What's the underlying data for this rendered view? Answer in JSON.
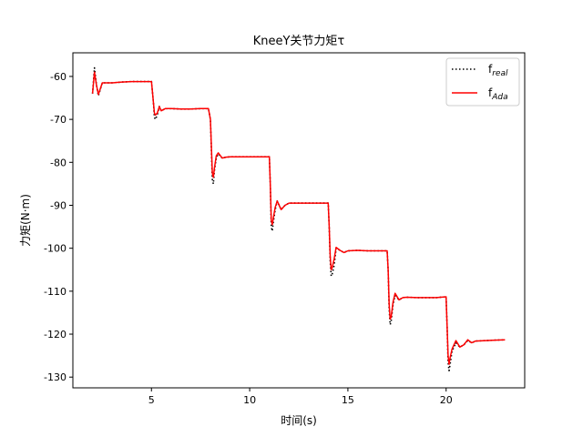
{
  "chart_data": {
    "type": "line",
    "title": "KneeY关节力矩τ",
    "xlabel": "时间(s)",
    "ylabel": "力矩(N·m)",
    "xlim": [
      1.0,
      24.0
    ],
    "ylim": [
      -132.5,
      -54.5
    ],
    "xticks": [
      5,
      10,
      15,
      20
    ],
    "yticks": [
      -60,
      -70,
      -80,
      -90,
      -100,
      -110,
      -120,
      -130
    ],
    "grid": false,
    "legend_position": "top-right",
    "series": [
      {
        "name": "f",
        "name_sub": "real",
        "color": "#000000",
        "style": "dotted",
        "x": [
          2.0,
          2.1,
          2.2,
          2.3,
          2.5,
          3.0,
          3.5,
          4.0,
          4.5,
          5.0,
          5.1,
          5.15,
          5.2,
          5.3,
          5.4,
          5.5,
          5.7,
          6.0,
          6.5,
          7.0,
          7.5,
          7.9,
          8.0,
          8.1,
          8.15,
          8.2,
          8.3,
          8.4,
          8.6,
          8.8,
          9.0,
          9.5,
          10.0,
          10.5,
          11.0,
          11.05,
          11.1,
          11.15,
          11.2,
          11.3,
          11.4,
          11.6,
          11.8,
          12.0,
          12.5,
          13.0,
          13.5,
          14.0,
          14.05,
          14.1,
          14.15,
          14.2,
          14.3,
          14.4,
          14.6,
          14.8,
          15.0,
          15.5,
          16.0,
          16.5,
          17.0,
          17.05,
          17.1,
          17.15,
          17.2,
          17.3,
          17.4,
          17.6,
          17.8,
          18.0,
          18.5,
          19.0,
          19.5,
          20.0,
          20.05,
          20.1,
          20.15,
          20.2,
          20.3,
          20.5,
          20.7,
          20.9,
          21.1,
          21.3,
          21.5,
          22.0,
          22.5,
          23.0
        ],
        "y": [
          -64,
          -58,
          -62,
          -64.5,
          -61.5,
          -61.5,
          -61.3,
          -61.2,
          -61.2,
          -61.2,
          -66,
          -69.5,
          -70,
          -69,
          -67,
          -68,
          -67.5,
          -67.5,
          -67.6,
          -67.6,
          -67.5,
          -67.5,
          -70,
          -84,
          -85,
          -82,
          -79,
          -78,
          -79,
          -78.8,
          -78.7,
          -78.7,
          -78.7,
          -78.7,
          -78.7,
          -85,
          -95,
          -96,
          -94,
          -91,
          -89,
          -91,
          -90,
          -89.5,
          -89.5,
          -89.5,
          -89.5,
          -89.5,
          -95,
          -103,
          -106.5,
          -106,
          -104,
          -100,
          -100.5,
          -101,
          -100.6,
          -100.5,
          -100.6,
          -100.6,
          -100.6,
          -105,
          -114,
          -117.8,
          -117,
          -113,
          -111,
          -112,
          -111.5,
          -111.4,
          -111.5,
          -111.5,
          -111.5,
          -111.3,
          -118,
          -126.5,
          -128.5,
          -127,
          -124,
          -122,
          -123,
          -122.5,
          -121.5,
          -122,
          -121.6,
          -121.5,
          -121.4,
          -121.3
        ]
      },
      {
        "name": "f",
        "name_sub": "Ada",
        "color": "#ff0000",
        "style": "solid",
        "x": [
          2.0,
          2.1,
          2.2,
          2.3,
          2.5,
          3.0,
          3.5,
          4.0,
          4.5,
          5.0,
          5.1,
          5.15,
          5.2,
          5.3,
          5.4,
          5.5,
          5.7,
          6.0,
          6.5,
          7.0,
          7.5,
          7.9,
          8.0,
          8.1,
          8.15,
          8.2,
          8.3,
          8.4,
          8.6,
          8.8,
          9.0,
          9.5,
          10.0,
          10.5,
          11.0,
          11.05,
          11.1,
          11.15,
          11.2,
          11.3,
          11.4,
          11.6,
          11.8,
          12.0,
          12.5,
          13.0,
          13.5,
          14.0,
          14.05,
          14.1,
          14.15,
          14.2,
          14.3,
          14.4,
          14.6,
          14.8,
          15.0,
          15.5,
          16.0,
          16.5,
          17.0,
          17.05,
          17.1,
          17.15,
          17.2,
          17.3,
          17.4,
          17.6,
          17.8,
          18.0,
          18.5,
          19.0,
          19.5,
          20.0,
          20.05,
          20.1,
          20.15,
          20.2,
          20.3,
          20.5,
          20.7,
          20.9,
          21.1,
          21.3,
          21.5,
          22.0,
          22.5,
          23.0
        ],
        "y": [
          -64,
          -59,
          -62,
          -64.2,
          -61.5,
          -61.5,
          -61.3,
          -61.2,
          -61.2,
          -61.2,
          -66,
          -68.5,
          -69,
          -68.5,
          -67,
          -68,
          -67.5,
          -67.5,
          -67.6,
          -67.6,
          -67.5,
          -67.5,
          -70,
          -82.5,
          -83.5,
          -81.5,
          -78.5,
          -77.8,
          -79,
          -78.8,
          -78.7,
          -78.7,
          -78.7,
          -78.7,
          -78.7,
          -85,
          -93.5,
          -94.5,
          -93,
          -90.5,
          -89,
          -91,
          -90,
          -89.5,
          -89.5,
          -89.5,
          -89.5,
          -89.5,
          -95,
          -102,
          -105,
          -104.5,
          -102.5,
          -99.8,
          -100.5,
          -101,
          -100.6,
          -100.5,
          -100.6,
          -100.6,
          -100.6,
          -105,
          -113,
          -116.5,
          -116,
          -112.5,
          -110.5,
          -112,
          -111.5,
          -111.4,
          -111.5,
          -111.5,
          -111.5,
          -111.3,
          -118,
          -125,
          -127,
          -125.5,
          -123.5,
          -121.5,
          -123,
          -122.5,
          -121.3,
          -122,
          -121.6,
          -121.5,
          -121.4,
          -121.3
        ]
      }
    ]
  }
}
